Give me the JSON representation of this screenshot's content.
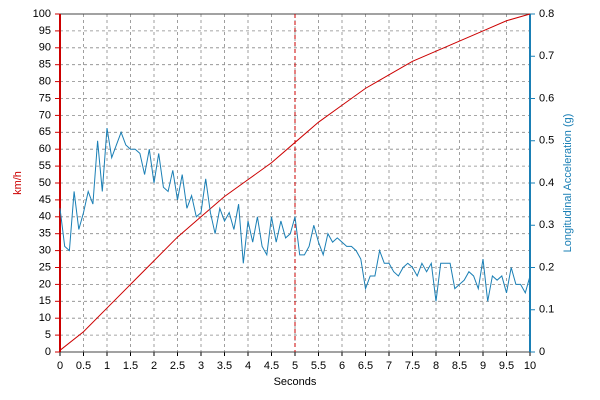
{
  "chart_data": {
    "type": "line",
    "xlabel": "Seconds",
    "ylabel": "km/h",
    "y2label": "Longitudinal Acceleration (g)",
    "xlim": [
      0,
      10
    ],
    "xticks": [
      0,
      0.5,
      1,
      1.5,
      2,
      2.5,
      3,
      3.5,
      4,
      4.5,
      5,
      5.5,
      6,
      6.5,
      7,
      7.5,
      8,
      8.5,
      9,
      9.5,
      10
    ],
    "ylim": [
      0,
      100
    ],
    "yticks": [
      0,
      5,
      10,
      15,
      20,
      25,
      30,
      35,
      40,
      45,
      50,
      55,
      60,
      65,
      70,
      75,
      80,
      85,
      90,
      95,
      100
    ],
    "y2lim": [
      0,
      0.8
    ],
    "y2ticks": [
      0,
      0.1,
      0.2,
      0.3,
      0.4,
      0.5,
      0.6,
      0.7,
      0.8
    ],
    "grid": true,
    "cursor_x": 5,
    "cursor_color": "#cc0000",
    "ycolor": "#cc0000",
    "y2color": "#1a7fb5",
    "series": [
      {
        "color": "#cc0000",
        "x": [
          0,
          0.5,
          1,
          1.5,
          2,
          2.5,
          3,
          3.5,
          4,
          4.5,
          5,
          5.5,
          6,
          6.5,
          7,
          7.5,
          8,
          8.5,
          9,
          9.5,
          10
        ],
        "values": [
          0.5,
          6,
          13,
          20,
          27,
          34,
          40,
          46,
          51,
          56,
          62,
          68,
          73,
          78,
          82,
          86,
          89,
          92,
          95,
          98,
          100
        ]
      },
      {
        "color": "#1a7fb5",
        "axis": "y2",
        "x": [
          0,
          0.1,
          0.2,
          0.3,
          0.4,
          0.5,
          0.6,
          0.7,
          0.8,
          0.9,
          1,
          1.1,
          1.2,
          1.3,
          1.4,
          1.5,
          1.6,
          1.7,
          1.8,
          1.9,
          2,
          2.1,
          2.2,
          2.3,
          2.4,
          2.5,
          2.6,
          2.7,
          2.8,
          2.9,
          3,
          3.1,
          3.2,
          3.3,
          3.4,
          3.5,
          3.6,
          3.7,
          3.8,
          3.9,
          4,
          4.1,
          4.2,
          4.3,
          4.4,
          4.5,
          4.6,
          4.7,
          4.8,
          4.9,
          5,
          5.1,
          5.2,
          5.3,
          5.4,
          5.5,
          5.6,
          5.7,
          5.8,
          5.9,
          6,
          6.1,
          6.2,
          6.3,
          6.4,
          6.5,
          6.6,
          6.7,
          6.8,
          6.9,
          7,
          7.1,
          7.2,
          7.3,
          7.4,
          7.5,
          7.6,
          7.7,
          7.8,
          7.9,
          8,
          8.1,
          8.2,
          8.3,
          8.4,
          8.5,
          8.6,
          8.7,
          8.8,
          8.9,
          9,
          9.1,
          9.2,
          9.3,
          9.4,
          9.5,
          9.6,
          9.7,
          9.8,
          9.9,
          10
        ],
        "values": [
          0.34,
          0.25,
          0.24,
          0.38,
          0.29,
          0.33,
          0.38,
          0.35,
          0.5,
          0.38,
          0.53,
          0.46,
          0.49,
          0.52,
          0.49,
          0.48,
          0.48,
          0.47,
          0.42,
          0.48,
          0.4,
          0.47,
          0.39,
          0.38,
          0.43,
          0.36,
          0.42,
          0.34,
          0.37,
          0.32,
          0.33,
          0.41,
          0.33,
          0.28,
          0.34,
          0.31,
          0.33,
          0.29,
          0.35,
          0.21,
          0.31,
          0.26,
          0.32,
          0.25,
          0.23,
          0.32,
          0.26,
          0.31,
          0.27,
          0.28,
          0.32,
          0.23,
          0.23,
          0.25,
          0.3,
          0.26,
          0.23,
          0.28,
          0.26,
          0.27,
          0.26,
          0.25,
          0.25,
          0.24,
          0.22,
          0.15,
          0.18,
          0.18,
          0.24,
          0.21,
          0.21,
          0.19,
          0.18,
          0.2,
          0.21,
          0.2,
          0.18,
          0.21,
          0.19,
          0.21,
          0.12,
          0.21,
          0.21,
          0.21,
          0.15,
          0.16,
          0.17,
          0.19,
          0.18,
          0.15,
          0.22,
          0.12,
          0.18,
          0.17,
          0.18,
          0.14,
          0.2,
          0.16,
          0.16,
          0.14,
          0.18
        ]
      }
    ]
  }
}
